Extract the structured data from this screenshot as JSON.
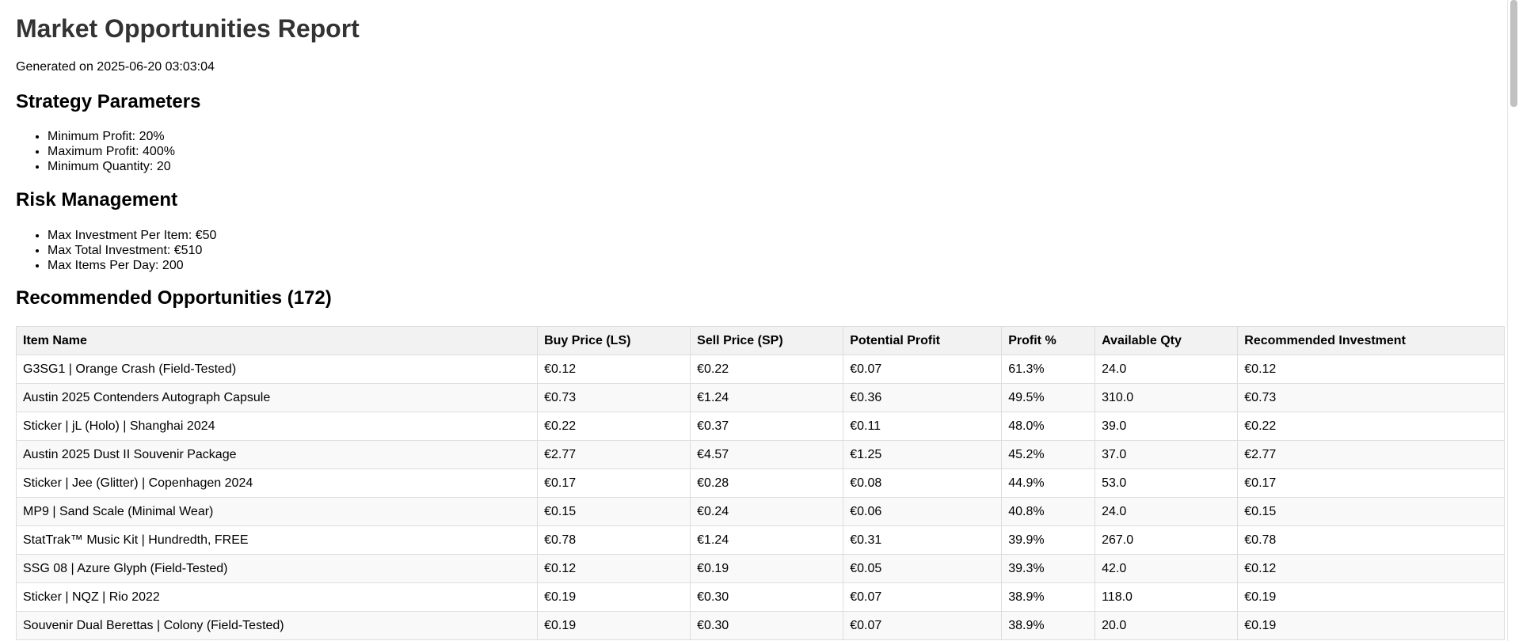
{
  "page_title": "Market Opportunities Report",
  "generated_text": "Generated on 2025-06-20 03:03:04",
  "strategy": {
    "heading": "Strategy Parameters",
    "items": [
      "Minimum Profit: 20%",
      "Maximum Profit: 400%",
      "Minimum Quantity: 20"
    ]
  },
  "risk": {
    "heading": "Risk Management",
    "items": [
      "Max Investment Per Item: €50",
      "Max Total Investment: €510",
      "Max Items Per Day: 200"
    ]
  },
  "opportunities": {
    "heading": "Recommended Opportunities (172)",
    "columns": [
      "Item Name",
      "Buy Price (LS)",
      "Sell Price (SP)",
      "Potential Profit",
      "Profit %",
      "Available Qty",
      "Recommended Investment"
    ],
    "rows": [
      [
        "G3SG1 | Orange Crash (Field-Tested)",
        "€0.12",
        "€0.22",
        "€0.07",
        "61.3%",
        "24.0",
        "€0.12"
      ],
      [
        "Austin 2025 Contenders Autograph Capsule",
        "€0.73",
        "€1.24",
        "€0.36",
        "49.5%",
        "310.0",
        "€0.73"
      ],
      [
        "Sticker | jL (Holo) | Shanghai 2024",
        "€0.22",
        "€0.37",
        "€0.11",
        "48.0%",
        "39.0",
        "€0.22"
      ],
      [
        "Austin 2025 Dust II Souvenir Package",
        "€2.77",
        "€4.57",
        "€1.25",
        "45.2%",
        "37.0",
        "€2.77"
      ],
      [
        "Sticker | Jee (Glitter) | Copenhagen 2024",
        "€0.17",
        "€0.28",
        "€0.08",
        "44.9%",
        "53.0",
        "€0.17"
      ],
      [
        "MP9 | Sand Scale (Minimal Wear)",
        "€0.15",
        "€0.24",
        "€0.06",
        "40.8%",
        "24.0",
        "€0.15"
      ],
      [
        "StatTrak™ Music Kit | Hundredth, FREE",
        "€0.78",
        "€1.24",
        "€0.31",
        "39.9%",
        "267.0",
        "€0.78"
      ],
      [
        "SSG 08 | Azure Glyph (Field-Tested)",
        "€0.12",
        "€0.19",
        "€0.05",
        "39.3%",
        "42.0",
        "€0.12"
      ],
      [
        "Sticker | NQZ | Rio 2022",
        "€0.19",
        "€0.30",
        "€0.07",
        "38.9%",
        "118.0",
        "€0.19"
      ],
      [
        "Souvenir Dual Berettas | Colony (Field-Tested)",
        "€0.19",
        "€0.30",
        "€0.07",
        "38.9%",
        "20.0",
        "€0.19"
      ]
    ]
  }
}
